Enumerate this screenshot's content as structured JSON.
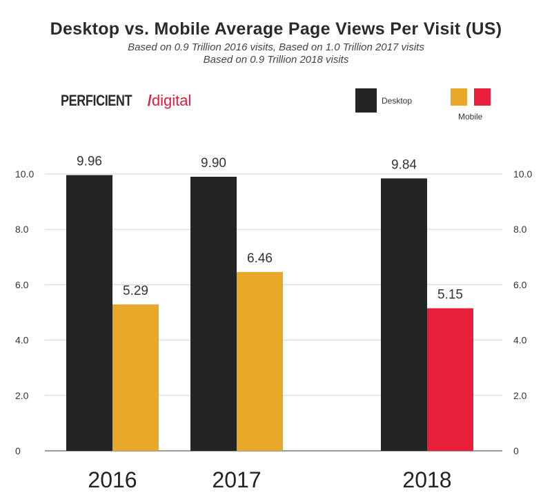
{
  "title": "Desktop vs. Mobile Average Page Views Per Visit (US)",
  "subtitle_lines": [
    "Based on 0.9 Trillion 2016 visits, Based on 1.0 Trillion 2017 visits",
    "Based on 0.9 Trillion 2018 visits"
  ],
  "logo": {
    "brand": "PERFICIENT",
    "accent": "digital"
  },
  "legend": {
    "desktop_label": "Desktop",
    "mobile_label": "Mobile",
    "desktop_color": "#222523",
    "mobile_colors": [
      "#e8a92a",
      "#e81f3b"
    ]
  },
  "chart_data": {
    "type": "bar",
    "categories": [
      "2016",
      "2017",
      "2018"
    ],
    "series": [
      {
        "name": "Desktop",
        "values": [
          9.96,
          9.9,
          9.84
        ],
        "labels": [
          "9.96",
          "9.90",
          "9.84"
        ],
        "colors": [
          "#222523",
          "#222523",
          "#222523"
        ]
      },
      {
        "name": "Mobile",
        "values": [
          5.29,
          6.46,
          5.15
        ],
        "labels": [
          "5.29",
          "6.46",
          "5.15"
        ],
        "colors": [
          "#e8a92a",
          "#e8a92a",
          "#e81f3b"
        ]
      }
    ],
    "ylim": [
      0,
      10
    ],
    "yticks": [
      "0",
      "2.0",
      "4.0",
      "6.0",
      "8.0",
      "10.0"
    ],
    "grid": true,
    "right_axis": true
  }
}
